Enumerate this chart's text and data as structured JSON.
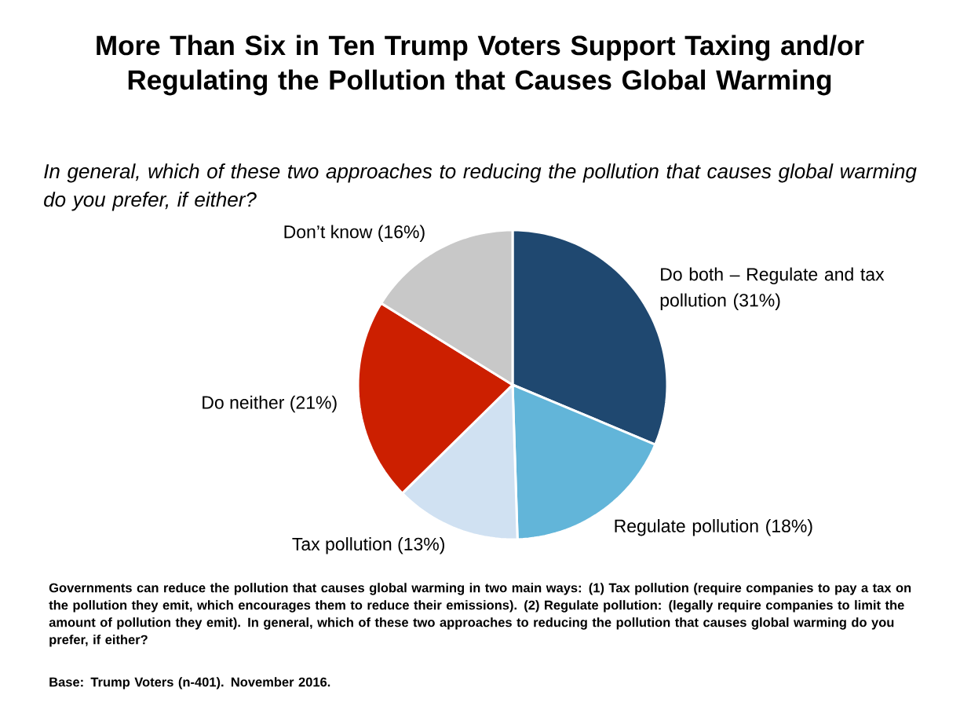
{
  "chart_data": {
    "type": "pie",
    "title": "More Than Six in Ten Trump Voters Support Taxing and/or Regulating the Pollution that Causes Global Warming",
    "subtitle": "In general, which of these two approaches to reducing the pollution that causes global warming do you prefer, if either?",
    "categories": [
      "Do both – Regulate and tax pollution  (31%)",
      "Regulate pollution (18%)",
      "Tax pollution (13%)",
      "Do neither (21%)",
      "Don’t know (16%)"
    ],
    "values": [
      31,
      18,
      13,
      21,
      16
    ],
    "colors": [
      "#1f4870",
      "#62b5d9",
      "#d0e1f2",
      "#cc1f00",
      "#c8c8c8"
    ],
    "annotations": [
      "Governments can reduce the pollution that causes global warming in two main ways: (1) Tax pollution (require companies to pay a tax on the pollution they emit, which encourages them to reduce their emissions). (2) Regulate pollution: (legally require companies to limit the amount of pollution they emit). In general, which of these two approaches to reducing the pollution that causes global warming do you prefer, if either?",
      "Base: Trump Voters (n-401). November 2016."
    ]
  }
}
